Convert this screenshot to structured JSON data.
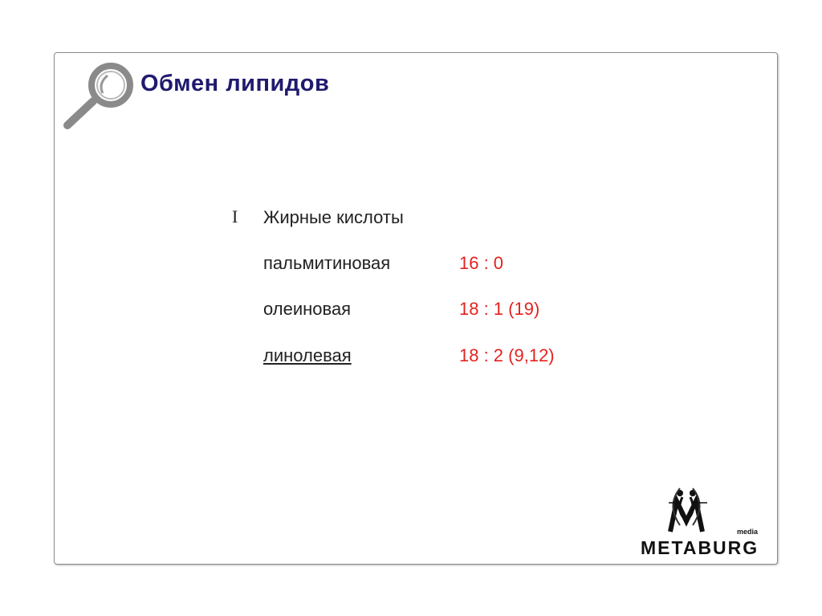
{
  "slide": {
    "title": "Обмен липидов",
    "section_number": "I",
    "section_heading": "Жирные кислоты",
    "acids": [
      {
        "name": "пальмитиновая",
        "formula": "16 : 0",
        "underlined": false
      },
      {
        "name": "олеиновая",
        "formula": "18 : 1 (19)",
        "underlined": false
      },
      {
        "name": "линолевая",
        "formula": "18 : 2 (9,12)",
        "underlined": true
      }
    ]
  },
  "logo": {
    "name": "METABURG",
    "sub": "media"
  },
  "colors": {
    "title": "#1f1a6e",
    "formula": "#e3231f",
    "text": "#222222"
  },
  "icons": {
    "header": "magnifier-icon"
  }
}
